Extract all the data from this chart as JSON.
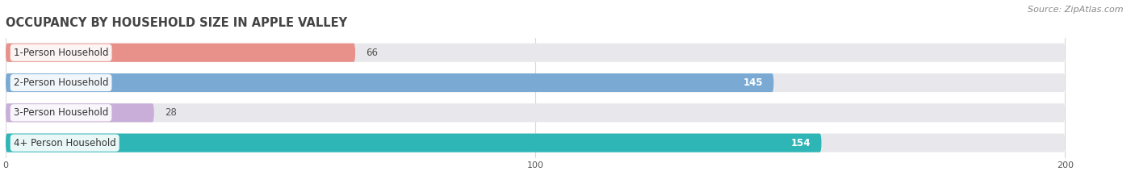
{
  "title": "OCCUPANCY BY HOUSEHOLD SIZE IN APPLE VALLEY",
  "source": "Source: ZipAtlas.com",
  "categories": [
    "1-Person Household",
    "2-Person Household",
    "3-Person Household",
    "4+ Person Household"
  ],
  "values": [
    66,
    145,
    28,
    154
  ],
  "bar_colors": [
    "#e8908a",
    "#7aaad4",
    "#c8aed8",
    "#2eb5b5"
  ],
  "bar_bg_color": "#e8e8ec",
  "xlim": [
    0,
    210
  ],
  "xticks": [
    0,
    100,
    200
  ],
  "bar_height": 0.62,
  "figsize": [
    14.06,
    2.33
  ],
  "dpi": 100,
  "bg_color": "#ffffff",
  "title_fontsize": 10.5,
  "label_fontsize": 8.5,
  "value_fontsize": 8.5,
  "source_fontsize": 8,
  "tick_fontsize": 8
}
